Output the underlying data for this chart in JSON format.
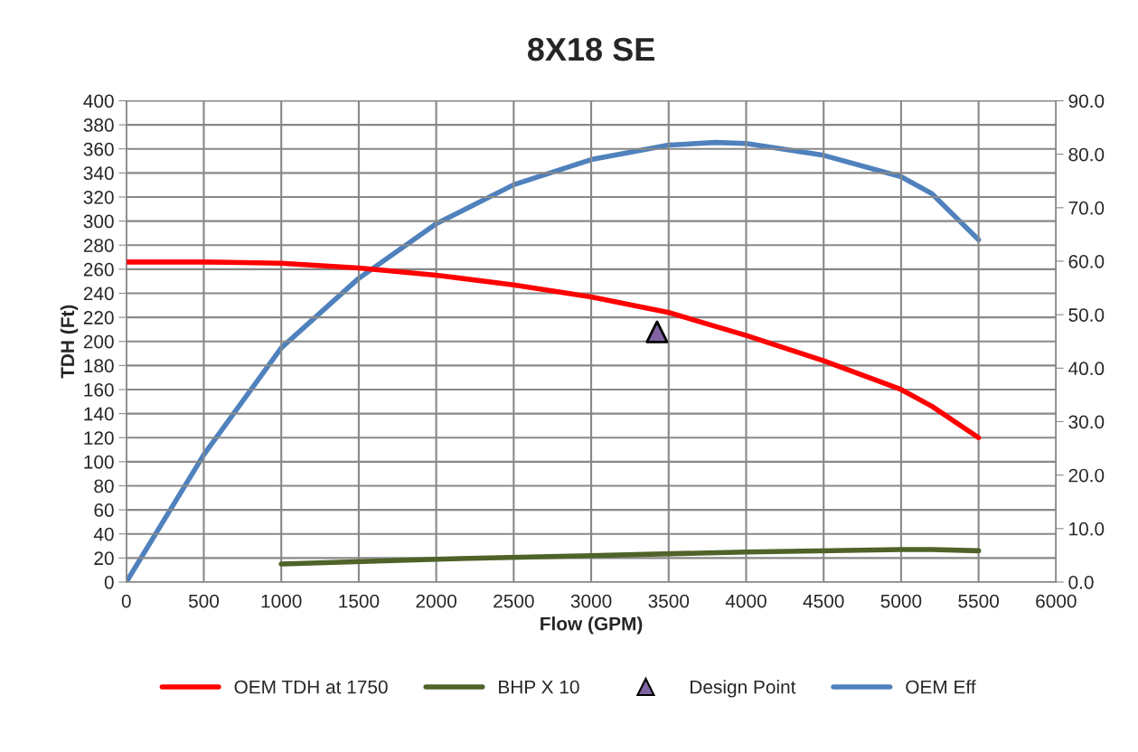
{
  "chart_data": {
    "type": "line",
    "title": "8X18 SE",
    "xlabel": "Flow (GPM)",
    "ylabel": "TDH (Ft)",
    "xlim": [
      0,
      6000
    ],
    "xticks": [
      0,
      500,
      1000,
      1500,
      2000,
      2500,
      3000,
      3500,
      4000,
      4500,
      5000,
      5500,
      6000
    ],
    "ylim": [
      0,
      400
    ],
    "yticks": [
      0,
      20,
      40,
      60,
      80,
      100,
      120,
      140,
      160,
      180,
      200,
      220,
      240,
      260,
      280,
      300,
      320,
      340,
      360,
      380,
      400
    ],
    "y2lim": [
      0,
      90
    ],
    "y2ticks": [
      {
        "value": 0,
        "label": "0.0"
      },
      {
        "value": 10,
        "label": "10.0"
      },
      {
        "value": 20,
        "label": "20.0"
      },
      {
        "value": 30,
        "label": "30.0"
      },
      {
        "value": 40,
        "label": "40.0"
      },
      {
        "value": 50,
        "label": "50.0"
      },
      {
        "value": 60,
        "label": "60.0"
      },
      {
        "value": 70,
        "label": "70.0"
      },
      {
        "value": 80,
        "label": "80.0"
      },
      {
        "value": 90,
        "label": "90.0"
      }
    ],
    "grid": true,
    "legend": "bottom",
    "line_style": "solid",
    "series": [
      {
        "name": "OEM TDH at 1750",
        "color": "#ff0000",
        "x": [
          0,
          500,
          1000,
          1500,
          2000,
          2500,
          3000,
          3500,
          4000,
          4500,
          5000,
          5200,
          5500
        ],
        "values": [
          266,
          266,
          265,
          261,
          255,
          247,
          237,
          224,
          205,
          184,
          160,
          146,
          120
        ]
      },
      {
        "name": "BHP X 10",
        "color": "#4f6228",
        "x": [
          1000,
          2000,
          3000,
          4000,
          5000,
          5200,
          5500
        ],
        "values": [
          15,
          19,
          22,
          25,
          27,
          27,
          26
        ]
      },
      {
        "name": "Design Point",
        "type": "scatter",
        "marker": "triangle",
        "color": "#8064a2",
        "x": [
          3425
        ],
        "values": [
          208
        ]
      },
      {
        "name": "OEM Eff",
        "color": "#4f81bd",
        "axis": "y2",
        "x": [
          0,
          500,
          1000,
          1500,
          2000,
          2500,
          3000,
          3500,
          3800,
          4000,
          4500,
          5000,
          5200,
          5500
        ],
        "values": [
          0,
          23.8,
          43.8,
          56.8,
          67.0,
          74.3,
          79.0,
          81.7,
          82.2,
          82.0,
          79.8,
          75.8,
          72.6,
          64.0
        ]
      }
    ]
  }
}
